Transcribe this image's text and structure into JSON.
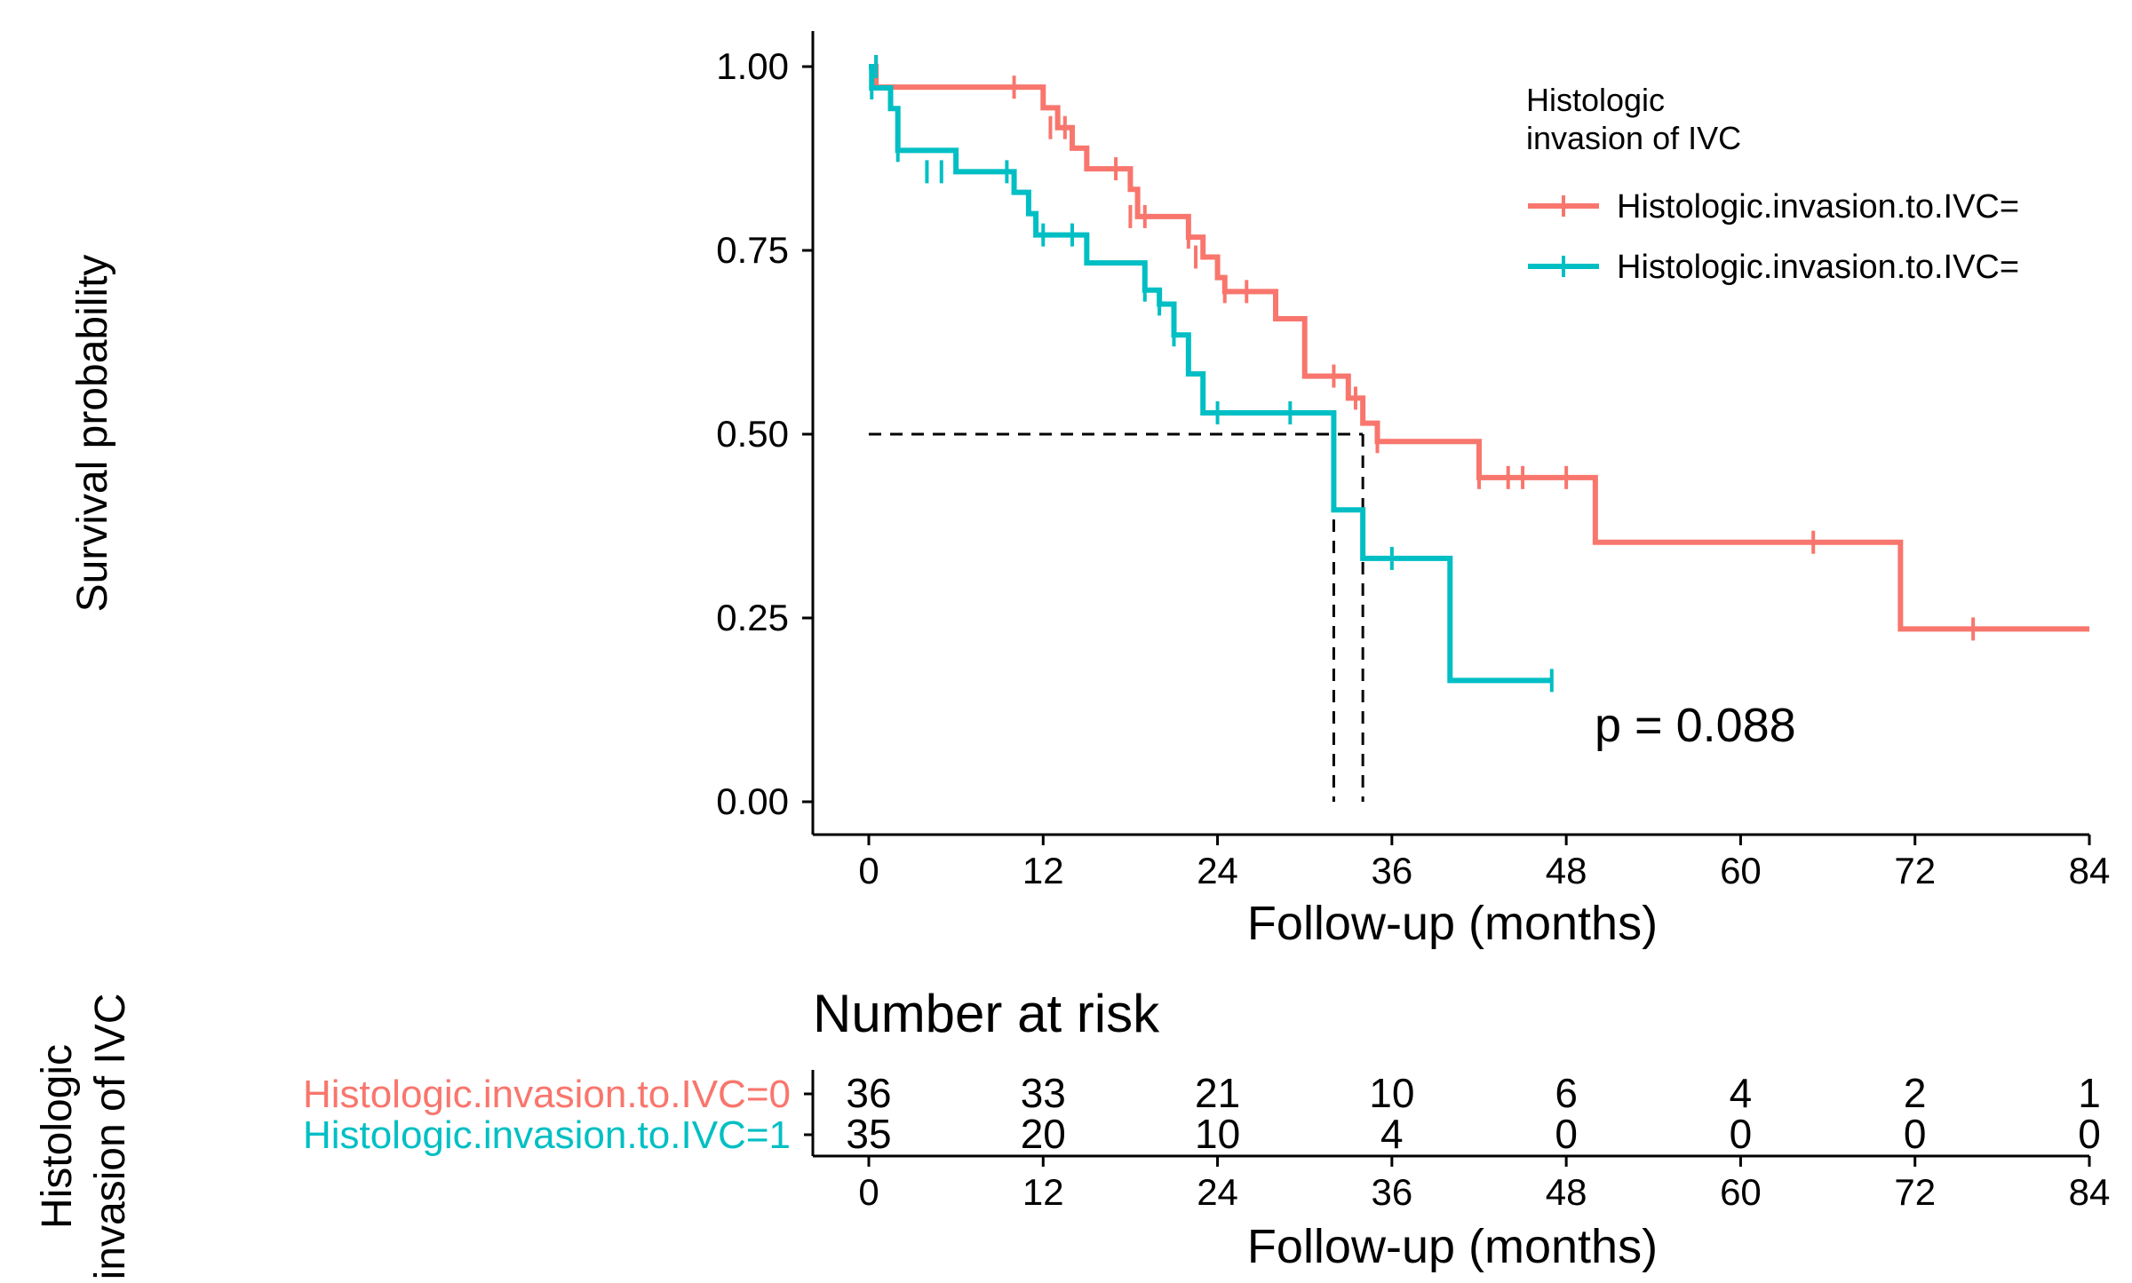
{
  "chart_data": [
    {
      "type": "line",
      "subtype": "kaplan-meier",
      "title": "",
      "xlabel": "Follow-up (months)",
      "ylabel": "Survival probability",
      "xlim": [
        0,
        84
      ],
      "ylim": [
        0,
        1
      ],
      "xticks": [
        "0",
        "12",
        "24",
        "36",
        "48",
        "60",
        "72",
        "84"
      ],
      "yticks": [
        "0.00",
        "0.25",
        "0.50",
        "0.75",
        "1.00"
      ],
      "legend": {
        "title_line1": "Histologic",
        "title_line2": "invasion of IVC",
        "position": "top-right"
      },
      "series": [
        {
          "name": "Histologic.invasion.to.IVC=",
          "color": "#F8766D",
          "steps": [
            [
              0,
              1.0
            ],
            [
              0.5,
              0.972
            ],
            [
              12,
              0.944
            ],
            [
              13,
              0.917
            ],
            [
              14,
              0.889
            ],
            [
              15,
              0.861
            ],
            [
              18,
              0.833
            ],
            [
              18.5,
              0.796
            ],
            [
              22,
              0.768
            ],
            [
              23,
              0.741
            ],
            [
              24,
              0.713
            ],
            [
              24.5,
              0.694
            ],
            [
              28,
              0.657
            ],
            [
              30,
              0.579
            ],
            [
              33,
              0.549
            ],
            [
              34,
              0.515
            ],
            [
              35,
              0.49
            ],
            [
              42,
              0.441
            ],
            [
              50,
              0.353
            ],
            [
              71,
              0.235
            ],
            [
              84,
              0.235
            ]
          ],
          "censors": [
            [
              0.5,
              1.0
            ],
            [
              10,
              0.972
            ],
            [
              12.5,
              0.917
            ],
            [
              13.5,
              0.917
            ],
            [
              17,
              0.861
            ],
            [
              18,
              0.796
            ],
            [
              19,
              0.796
            ],
            [
              22,
              0.768
            ],
            [
              22.5,
              0.741
            ],
            [
              24.5,
              0.694
            ],
            [
              26,
              0.694
            ],
            [
              32,
              0.579
            ],
            [
              33.5,
              0.549
            ],
            [
              35,
              0.49
            ],
            [
              42,
              0.441
            ],
            [
              44,
              0.441
            ],
            [
              45,
              0.441
            ],
            [
              48,
              0.441
            ],
            [
              65,
              0.353
            ],
            [
              76,
              0.235
            ]
          ]
        },
        {
          "name": "Histologic.invasion.to.IVC=",
          "color": "#00BFC4",
          "steps": [
            [
              0,
              1.0
            ],
            [
              0.2,
              0.971
            ],
            [
              1.5,
              0.943
            ],
            [
              2,
              0.886
            ],
            [
              6,
              0.857
            ],
            [
              10,
              0.829
            ],
            [
              11,
              0.8
            ],
            [
              11.5,
              0.771
            ],
            [
              15,
              0.733
            ],
            [
              19,
              0.696
            ],
            [
              20,
              0.677
            ],
            [
              21,
              0.635
            ],
            [
              22,
              0.582
            ],
            [
              23,
              0.529
            ],
            [
              32,
              0.397
            ],
            [
              34,
              0.331
            ],
            [
              40,
              0.165
            ],
            [
              47,
              0.165
            ]
          ],
          "censors": [
            [
              0.2,
              0.971
            ],
            [
              0.5,
              1.0
            ],
            [
              2,
              0.886
            ],
            [
              4,
              0.857
            ],
            [
              5,
              0.857
            ],
            [
              9.5,
              0.857
            ],
            [
              12,
              0.771
            ],
            [
              14,
              0.771
            ],
            [
              19,
              0.696
            ],
            [
              20,
              0.677
            ],
            [
              21,
              0.635
            ],
            [
              24,
              0.529
            ],
            [
              29,
              0.529
            ],
            [
              36,
              0.331
            ],
            [
              47,
              0.165
            ]
          ]
        }
      ],
      "median_lines": [
        {
          "x": 32,
          "y": 0.5
        },
        {
          "x": 34,
          "y": 0.5
        }
      ],
      "annotation": "p = 0.088"
    },
    {
      "type": "table",
      "title": "Number at risk",
      "xlabel": "Follow-up (months)",
      "xlim": [
        0,
        84
      ],
      "xticks": [
        "0",
        "12",
        "24",
        "36",
        "48",
        "60",
        "72",
        "84"
      ],
      "ylabel_line1": "Histologic",
      "ylabel_line2": "invasion of IVC",
      "rows": [
        {
          "label": "Histologic.invasion.to.IVC=0",
          "color": "#F8766D",
          "values": [
            36,
            33,
            21,
            10,
            6,
            4,
            2,
            1
          ]
        },
        {
          "label": "Histologic.invasion.to.IVC=1",
          "color": "#00BFC4",
          "values": [
            35,
            20,
            10,
            4,
            0,
            0,
            0,
            0
          ]
        }
      ]
    }
  ]
}
